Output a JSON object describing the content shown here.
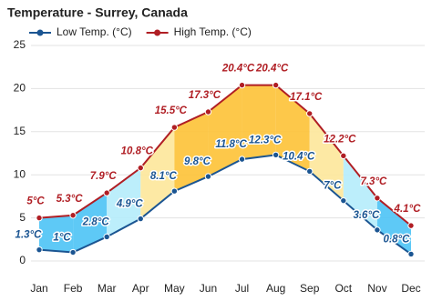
{
  "chart_data": {
    "type": "line",
    "title": "Temperature - Surrey, Canada",
    "categories": [
      "Jan",
      "Feb",
      "Mar",
      "Apr",
      "May",
      "Jun",
      "Jul",
      "Aug",
      "Sep",
      "Oct",
      "Nov",
      "Dec"
    ],
    "series": [
      {
        "name": "Low Temp. (°C)",
        "color": "#1b5592",
        "values": [
          1.3,
          1,
          2.8,
          4.9,
          8.1,
          9.8,
          11.8,
          12.3,
          10.4,
          7,
          3.6,
          0.8
        ],
        "value_labels": [
          "1.3°C",
          "1°C",
          "2.8°C",
          "4.9°C",
          "8.1°C",
          "9.8°C",
          "11.8°C",
          "12.3°C",
          "10.4°C",
          "7°C",
          "3.6°C",
          "0.8°C"
        ]
      },
      {
        "name": "High Temp. (°C)",
        "color": "#b01e24",
        "values": [
          5,
          5.3,
          7.9,
          10.8,
          15.5,
          17.3,
          20.4,
          20.4,
          17.1,
          12.2,
          7.3,
          4.1
        ],
        "value_labels": [
          "5°C",
          "5.3°C",
          "7.9°C",
          "10.8°C",
          "15.5°C",
          "17.3°C",
          "20.4°C",
          "20.4°C",
          "17.1°C",
          "12.2°C",
          "7.3°C",
          "4.1°C"
        ]
      }
    ],
    "ylim": [
      0,
      25
    ],
    "yticks": [
      0,
      5,
      10,
      15,
      20,
      25
    ],
    "grid": true
  }
}
